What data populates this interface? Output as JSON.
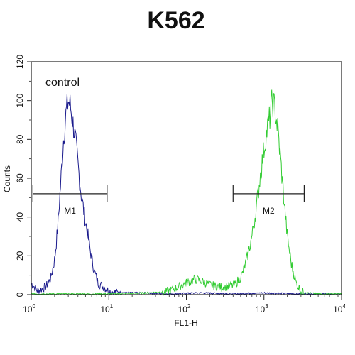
{
  "chart_data": {
    "type": "area",
    "title": "K562",
    "xlabel": "FL1-H",
    "ylabel": "Counts",
    "x_scale": "log",
    "xlim": [
      1,
      10000
    ],
    "ylim": [
      0,
      120
    ],
    "x_ticks": [
      {
        "base": "10",
        "exp": "0",
        "value": 1
      },
      {
        "base": "10",
        "exp": "1",
        "value": 10
      },
      {
        "base": "10",
        "exp": "2",
        "value": 100
      },
      {
        "base": "10",
        "exp": "3",
        "value": 1000
      },
      {
        "base": "10",
        "exp": "4",
        "value": 10000
      }
    ],
    "y_ticks": [
      0,
      20,
      40,
      60,
      80,
      100,
      120
    ],
    "grid": false,
    "annotation": "control",
    "series": [
      {
        "color": "#1a1a8c",
        "points": [
          [
            1.0,
            6
          ],
          [
            1.2,
            2
          ],
          [
            1.4,
            3
          ],
          [
            1.6,
            5
          ],
          [
            1.8,
            9
          ],
          [
            2.0,
            18
          ],
          [
            2.2,
            35
          ],
          [
            2.4,
            58
          ],
          [
            2.6,
            80
          ],
          [
            2.8,
            93
          ],
          [
            3.0,
            100
          ],
          [
            3.2,
            97
          ],
          [
            3.4,
            90
          ],
          [
            3.7,
            80
          ],
          [
            4.0,
            67
          ],
          [
            4.4,
            52
          ],
          [
            4.8,
            42
          ],
          [
            5.3,
            32
          ],
          [
            5.8,
            22
          ],
          [
            6.5,
            12
          ],
          [
            7.3,
            6
          ],
          [
            8.5,
            4
          ],
          [
            10,
            2
          ],
          [
            13,
            1
          ],
          [
            20,
            0.5
          ],
          [
            30,
            0.5
          ],
          [
            60,
            0
          ],
          [
            150,
            0.5
          ],
          [
            400,
            0
          ],
          [
            1000,
            0.5
          ],
          [
            3000,
            0
          ],
          [
            10000,
            0
          ]
        ]
      },
      {
        "color": "#33cc33",
        "points": [
          [
            1,
            0
          ],
          [
            10,
            0
          ],
          [
            30,
            0.5
          ],
          [
            50,
            1
          ],
          [
            70,
            3
          ],
          [
            100,
            6
          ],
          [
            130,
            8
          ],
          [
            160,
            7
          ],
          [
            200,
            5
          ],
          [
            260,
            4
          ],
          [
            330,
            4
          ],
          [
            420,
            5
          ],
          [
            520,
            10
          ],
          [
            600,
            18
          ],
          [
            700,
            30
          ],
          [
            800,
            45
          ],
          [
            900,
            62
          ],
          [
            1000,
            75
          ],
          [
            1100,
            85
          ],
          [
            1200,
            92
          ],
          [
            1280,
            100
          ],
          [
            1380,
            96
          ],
          [
            1500,
            86
          ],
          [
            1650,
            68
          ],
          [
            1800,
            50
          ],
          [
            2000,
            30
          ],
          [
            2250,
            16
          ],
          [
            2600,
            6
          ],
          [
            3000,
            2
          ],
          [
            3600,
            0.5
          ],
          [
            5000,
            0
          ],
          [
            10000,
            0
          ]
        ]
      }
    ],
    "markers": [
      {
        "label": "M1",
        "x_start": 1.05,
        "x_end": 9.5,
        "y": 52
      },
      {
        "label": "M2",
        "x_start": 400,
        "x_end": 3300,
        "y": 52
      }
    ]
  }
}
